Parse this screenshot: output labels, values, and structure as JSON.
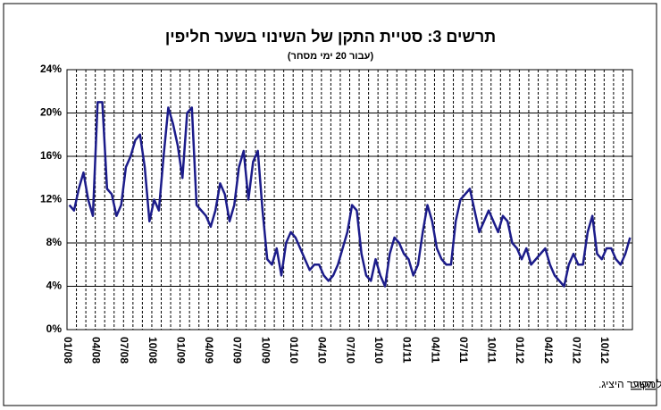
{
  "chart_data": {
    "type": "line",
    "title": "תרשים 3: סטיית התקן של השינוי בשער חליפין",
    "subtitle": "(עבור 20 ימי מסחר)",
    "source_label": "מקור:",
    "source": "חישוב על השער היציג.",
    "categories": [
      "01/08",
      null,
      null,
      null,
      null,
      null,
      "04/08",
      null,
      null,
      null,
      null,
      null,
      "07/08",
      null,
      null,
      null,
      null,
      null,
      "10/08",
      null,
      null,
      null,
      null,
      null,
      "01/09",
      null,
      null,
      null,
      null,
      null,
      "04/09",
      null,
      null,
      null,
      null,
      null,
      "07/09",
      null,
      null,
      null,
      null,
      null,
      "10/09",
      null,
      null,
      null,
      null,
      null,
      "01/10",
      null,
      null,
      null,
      null,
      null,
      "04/10",
      null,
      null,
      null,
      null,
      null,
      "07/10",
      null,
      null,
      null,
      null,
      null,
      "10/10",
      null,
      null,
      null,
      null,
      null,
      "01/11",
      null,
      null,
      null,
      null,
      null,
      "04/11",
      null,
      null,
      null,
      null,
      null,
      "07/11",
      null,
      null,
      null,
      null,
      null,
      "10/11",
      null,
      null,
      null,
      null,
      null,
      "01/12",
      null,
      null,
      null,
      null,
      null,
      "04/12",
      null,
      null,
      null,
      null,
      null,
      "07/12",
      null,
      null,
      null,
      null,
      null,
      "10/12",
      null,
      null,
      null,
      null,
      null
    ],
    "series": [
      {
        "color": "#1c1c8a",
        "values": [
          11.5,
          11,
          13,
          14.5,
          12,
          10.5,
          21,
          21,
          13,
          12.5,
          10.5,
          11.5,
          15,
          16,
          17.5,
          18,
          15,
          10,
          12,
          11,
          16,
          20.5,
          19,
          17,
          14,
          20,
          20.5,
          11.5,
          11,
          10.5,
          9.5,
          11,
          13.5,
          12.5,
          10,
          11.5,
          15,
          16.5,
          12,
          15.5,
          16.5,
          11,
          6.5,
          6,
          7.5,
          5,
          8,
          9,
          8.5,
          7.5,
          6.5,
          5.5,
          6,
          6,
          5,
          4.5,
          5,
          6,
          7.5,
          9,
          11.5,
          11,
          7,
          5,
          4.5,
          6.5,
          5,
          4,
          7,
          8.5,
          8,
          7,
          6.5,
          5,
          6,
          9,
          11.5,
          10,
          7.5,
          6.5,
          6,
          6,
          10,
          12,
          12.5,
          13,
          11,
          9,
          10,
          11,
          10,
          9,
          10.5,
          10,
          8,
          7.5,
          6.5,
          7.5,
          6,
          6.5,
          7,
          7.5,
          6,
          5,
          4.5,
          4,
          6,
          7,
          6,
          6,
          9,
          10.5,
          7,
          6.5,
          7.5,
          7.5,
          6.5,
          6,
          7,
          8.5
        ]
      }
    ],
    "ylim": [
      0,
      24
    ],
    "yticks": [
      {
        "value": 0,
        "label": "0%"
      },
      {
        "value": 4,
        "label": "4%"
      },
      {
        "value": 8,
        "label": "8%"
      },
      {
        "value": 12,
        "label": "12%"
      },
      {
        "value": 16,
        "label": "16%"
      },
      {
        "value": 20,
        "label": "20%"
      },
      {
        "value": 24,
        "label": "24%"
      }
    ],
    "grid": true
  }
}
